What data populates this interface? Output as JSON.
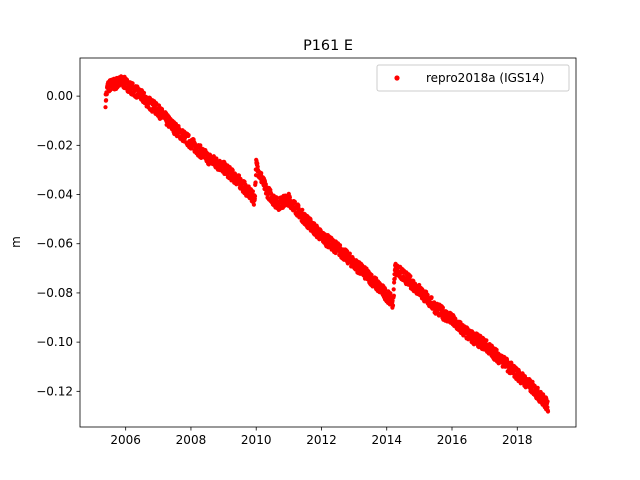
{
  "chart_data": {
    "type": "scatter",
    "title": "P161 E",
    "xlabel": "",
    "ylabel": "m",
    "xlim": [
      2004.6,
      2019.8
    ],
    "ylim": [
      -0.1345,
      0.0155
    ],
    "x_ticks": [
      2006,
      2008,
      2010,
      2012,
      2014,
      2016,
      2018
    ],
    "x_tick_labels": [
      "2006",
      "2008",
      "2010",
      "2012",
      "2014",
      "2016",
      "2018"
    ],
    "y_ticks": [
      0.0,
      -0.02,
      -0.04,
      -0.06,
      -0.08,
      -0.1,
      -0.12
    ],
    "y_tick_labels": [
      "0.00",
      "−0.02",
      "−0.04",
      "−0.06",
      "−0.08",
      "−0.10",
      "−0.12"
    ],
    "grid": false,
    "legend_position": "top-right",
    "series": [
      {
        "name": "repro2018a (IGS14)",
        "color": "#ff0000",
        "marker": "circle",
        "trend": [
          [
            2005.38,
            -0.002
          ],
          [
            2005.45,
            0.004
          ],
          [
            2005.9,
            0.006
          ],
          [
            2006.4,
            0.001
          ],
          [
            2007.0,
            -0.006
          ],
          [
            2007.5,
            -0.013
          ],
          [
            2008.0,
            -0.019
          ],
          [
            2008.5,
            -0.025
          ],
          [
            2009.0,
            -0.029
          ],
          [
            2009.5,
            -0.035
          ],
          [
            2009.95,
            -0.042
          ],
          [
            2010.0,
            -0.028
          ],
          [
            2010.3,
            -0.038
          ],
          [
            2010.65,
            -0.044
          ],
          [
            2011.0,
            -0.042
          ],
          [
            2011.5,
            -0.05
          ],
          [
            2012.0,
            -0.057
          ],
          [
            2012.5,
            -0.062
          ],
          [
            2013.0,
            -0.068
          ],
          [
            2013.5,
            -0.074
          ],
          [
            2014.0,
            -0.081
          ],
          [
            2014.2,
            -0.084
          ],
          [
            2014.25,
            -0.07
          ],
          [
            2014.6,
            -0.074
          ],
          [
            2015.0,
            -0.079
          ],
          [
            2015.5,
            -0.086
          ],
          [
            2016.0,
            -0.091
          ],
          [
            2016.5,
            -0.097
          ],
          [
            2017.0,
            -0.101
          ],
          [
            2017.5,
            -0.107
          ],
          [
            2018.0,
            -0.113
          ],
          [
            2018.5,
            -0.119
          ],
          [
            2018.95,
            -0.126
          ]
        ]
      }
    ]
  }
}
